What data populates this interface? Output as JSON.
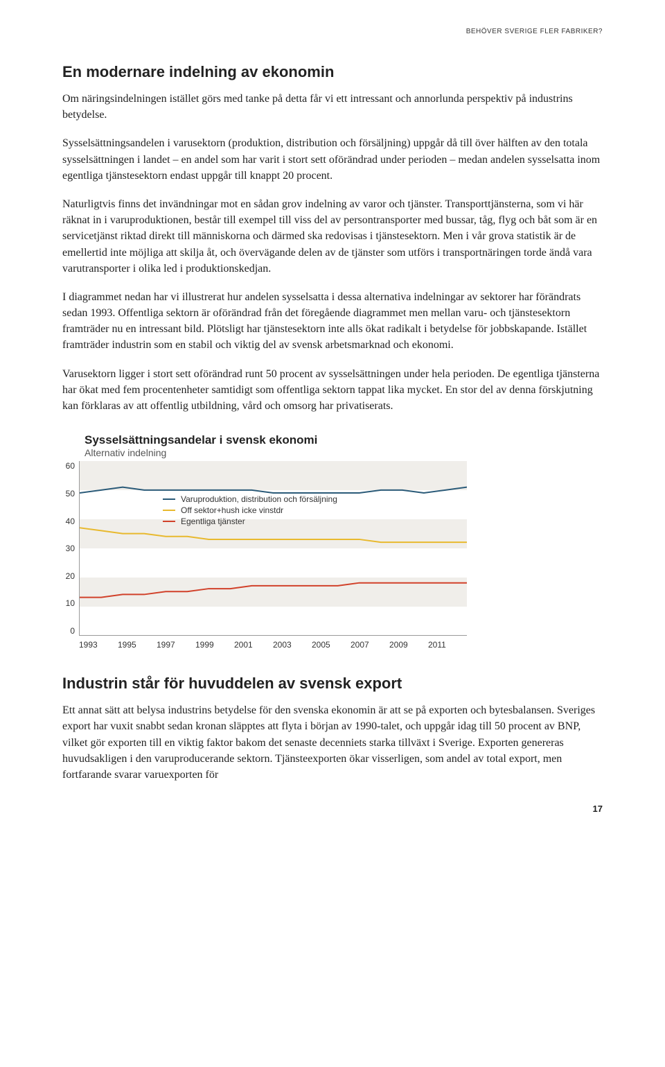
{
  "running_header": "BEHÖVER SVERIGE FLER FABRIKER?",
  "section": {
    "title": "En modernare indelning av ekonomin",
    "p1": "Om näringsindelningen istället görs med tanke på detta får vi ett intressant och annorlunda perspektiv på industrins betydelse.",
    "p2": "Sysselsättningsandelen i varusektorn (produktion, distribution och försäljning) uppgår då till över hälften av den totala sysselsättningen i landet – en andel som har varit i stort sett oförändrad under perioden – medan andelen sysselsatta inom egentliga tjänstesektorn endast uppgår till knappt 20 procent.",
    "p3": "Naturligtvis finns det invändningar mot en sådan grov indelning av varor och tjänster. Transporttjänsterna, som vi här räknat in i varuproduktionen, består till exempel till viss del av persontransporter med bussar, tåg, flyg och båt som är en servicetjänst riktad direkt till människorna och därmed ska redovisas i tjänstesektorn. Men i vår grova statistik är de emellertid inte möjliga att skilja åt, och övervägande delen av de tjänster som utförs i transportnäringen torde ändå vara varutransporter i olika led i produktionskedjan.",
    "p4": "I diagrammet nedan har vi illustrerat hur andelen sysselsatta i dessa alternativa indelningar av sektorer har förändrats sedan 1993. Offentliga sektorn är oförändrad från det föregående diagrammet men mellan varu- och tjänstesektorn framträder nu en intressant bild. Plötsligt har tjänstesektorn inte alls ökat radikalt i betydelse för jobbskapande. Istället framträder industrin som en stabil och viktig del av svensk arbetsmarknad och ekonomi.",
    "p5": "Varusektorn ligger i stort sett oförändrad runt 50 procent av sysselsättningen under hela perioden. De egentliga tjänsterna har ökat med fem procentenheter samtidigt som offentliga sektorn tappat lika mycket. En stor del av denna förskjutning kan förklaras av att offentlig utbildning, vård och omsorg har privatiserats."
  },
  "chart": {
    "title": "Sysselsättningsandelar i svensk ekonomi",
    "subtitle": "Alternativ indelning",
    "type": "line",
    "background_color": "#ffffff",
    "band_color": "#f0eeea",
    "axis_color": "#999999",
    "text_color": "#333333",
    "label_fontsize": 12,
    "title_fontsize": 17,
    "ylim": [
      0,
      60
    ],
    "ytick_step": 10,
    "yticks": [
      60,
      50,
      40,
      30,
      20,
      10,
      0
    ],
    "xticks": [
      1993,
      1995,
      1997,
      1999,
      2001,
      2003,
      2005,
      2007,
      2009,
      2011
    ],
    "years": [
      1993,
      1994,
      1995,
      1996,
      1997,
      1998,
      1999,
      2000,
      2001,
      2002,
      2003,
      2004,
      2005,
      2006,
      2007,
      2008,
      2009,
      2010,
      2011
    ],
    "line_width": 2,
    "series": [
      {
        "name": "Varuproduktion, distribution och försäljning",
        "color": "#2a5a78",
        "values": [
          49,
          50,
          51,
          50,
          50,
          50,
          50,
          50,
          50,
          49,
          49,
          49,
          49,
          49,
          50,
          50,
          49,
          50,
          51
        ]
      },
      {
        "name": "Off sektor+hush icke vinstdr",
        "color": "#e8b92e",
        "values": [
          37,
          36,
          35,
          35,
          34,
          34,
          33,
          33,
          33,
          33,
          33,
          33,
          33,
          33,
          32,
          32,
          32,
          32,
          32
        ]
      },
      {
        "name": "Egentliga tjänster",
        "color": "#d1412a",
        "values": [
          13,
          13,
          14,
          14,
          15,
          15,
          16,
          16,
          17,
          17,
          17,
          17,
          17,
          18,
          18,
          18,
          18,
          18,
          18
        ]
      }
    ]
  },
  "subsection": {
    "title": "Industrin står för huvuddelen av svensk export",
    "p1": "Ett annat sätt att belysa industrins betydelse för den svenska ekonomin är att se på exporten och bytesbalansen. Sveriges export har vuxit snabbt sedan kronan släpptes att flyta i början av 1990-talet, och uppgår idag till 50 procent av BNP, vilket gör exporten till en viktig faktor bakom det senaste decenniets starka tillväxt i Sverige. Exporten genereras huvudsakligen i den varuproducerande sektorn. Tjänsteexporten ökar visserligen, som andel av total export, men fortfarande svarar varuexporten för"
  },
  "page_number": "17"
}
